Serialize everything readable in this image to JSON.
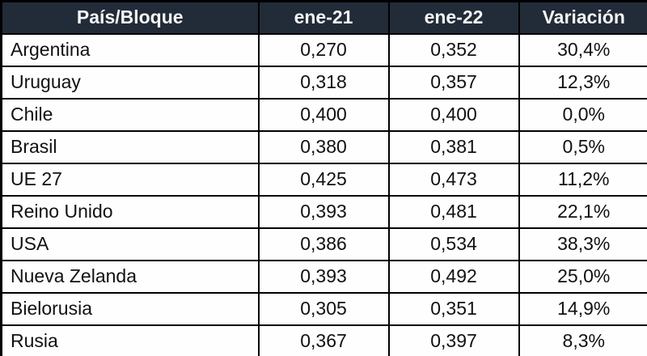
{
  "table": {
    "columns": [
      {
        "key": "name",
        "label": "País/Bloque"
      },
      {
        "key": "ene21",
        "label": "ene-21"
      },
      {
        "key": "ene22",
        "label": "ene-22"
      },
      {
        "key": "variacion",
        "label": "Variación"
      }
    ],
    "rows": [
      {
        "name": "Argentina",
        "ene21": "0,270",
        "ene22": "0,352",
        "variacion": "30,4%"
      },
      {
        "name": "Uruguay",
        "ene21": "0,318",
        "ene22": "0,357",
        "variacion": "12,3%"
      },
      {
        "name": "Chile",
        "ene21": "0,400",
        "ene22": "0,400",
        "variacion": "0,0%"
      },
      {
        "name": "Brasil",
        "ene21": "0,380",
        "ene22": "0,381",
        "variacion": "0,5%"
      },
      {
        "name": "UE 27",
        "ene21": "0,425",
        "ene22": "0,473",
        "variacion": "11,2%"
      },
      {
        "name": "Reino Unido",
        "ene21": "0,393",
        "ene22": "0,481",
        "variacion": "22,1%"
      },
      {
        "name": "USA",
        "ene21": "0,386",
        "ene22": "0,534",
        "variacion": "38,3%"
      },
      {
        "name": "Nueva Zelanda",
        "ene21": "0,393",
        "ene22": "0,492",
        "variacion": "25,0%"
      },
      {
        "name": "Bielorusia",
        "ene21": "0,305",
        "ene22": "0,351",
        "variacion": "14,9%"
      },
      {
        "name": "Rusia",
        "ene21": "0,367",
        "ene22": "0,397",
        "variacion": "8,3%"
      }
    ],
    "colors": {
      "header_bg": "#222b38",
      "header_text": "#f5f5f5",
      "body_bg": "#fefefe",
      "body_text": "#111111",
      "border": "#000000"
    }
  }
}
